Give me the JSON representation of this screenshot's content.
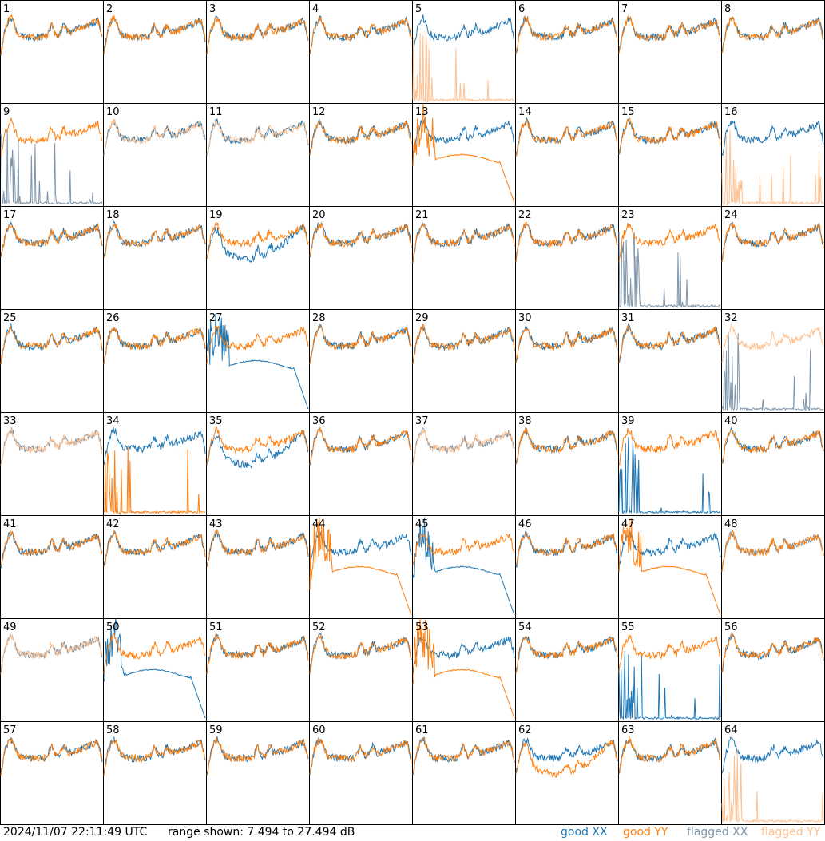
{
  "footer": {
    "timestamp": "2024/11/07 22:11:49 UTC",
    "range": "range shown: 7.494 to 27.494 dB",
    "legend": {
      "good_xx": "good XX",
      "good_yy": "good YY",
      "flagged_xx": "flagged XX",
      "flagged_yy": "flagged YY"
    }
  },
  "colors": {
    "good_xx": "#1f77b4",
    "good_yy": "#ff7f0e",
    "flagged_xx": "#7e95aa",
    "flagged_yy": "#ffc08f"
  },
  "chart_data": {
    "type": "line",
    "layout": "8x8 small multiples",
    "y_unit": "dB",
    "ylim": [
      7.494,
      27.494
    ],
    "grid": false,
    "legend_placement": "bottom-right",
    "series": [
      "XX",
      "YY"
    ],
    "panels": [
      {
        "id": "1",
        "xx": "normal",
        "yy": "normal"
      },
      {
        "id": "2",
        "xx": "normal",
        "yy": "normal"
      },
      {
        "id": "3",
        "xx": "normal",
        "yy": "normal"
      },
      {
        "id": "4",
        "xx": "normal",
        "yy": "normal"
      },
      {
        "id": "5",
        "xx": "normal",
        "yy": "flagged_spiky"
      },
      {
        "id": "6",
        "xx": "normal",
        "yy": "normal"
      },
      {
        "id": "7",
        "xx": "normal",
        "yy": "normal"
      },
      {
        "id": "8",
        "xx": "normal",
        "yy": "normal"
      },
      {
        "id": "9",
        "xx": "flagged_spiky",
        "yy": "normal"
      },
      {
        "id": "10",
        "xx": "normal",
        "yy": "flagged"
      },
      {
        "id": "11",
        "xx": "normal",
        "yy": "flagged"
      },
      {
        "id": "12",
        "xx": "normal",
        "yy": "normal"
      },
      {
        "id": "13",
        "xx": "normal",
        "yy": "droop"
      },
      {
        "id": "14",
        "xx": "normal",
        "yy": "normal"
      },
      {
        "id": "15",
        "xx": "normal",
        "yy": "normal"
      },
      {
        "id": "16",
        "xx": "normal",
        "yy": "flagged_spiky"
      },
      {
        "id": "17",
        "xx": "normal",
        "yy": "normal"
      },
      {
        "id": "18",
        "xx": "normal",
        "yy": "normal"
      },
      {
        "id": "19",
        "xx": "low",
        "yy": "normal"
      },
      {
        "id": "20",
        "xx": "normal",
        "yy": "normal"
      },
      {
        "id": "21",
        "xx": "normal",
        "yy": "normal"
      },
      {
        "id": "22",
        "xx": "normal",
        "yy": "normal"
      },
      {
        "id": "23",
        "xx": "flagged_spiky",
        "yy": "normal"
      },
      {
        "id": "24",
        "xx": "normal",
        "yy": "normal"
      },
      {
        "id": "25",
        "xx": "normal",
        "yy": "normal"
      },
      {
        "id": "26",
        "xx": "normal",
        "yy": "normal"
      },
      {
        "id": "27",
        "xx": "droop",
        "yy": "normal"
      },
      {
        "id": "28",
        "xx": "normal",
        "yy": "normal"
      },
      {
        "id": "29",
        "xx": "normal",
        "yy": "normal"
      },
      {
        "id": "30",
        "xx": "normal",
        "yy": "normal"
      },
      {
        "id": "31",
        "xx": "normal",
        "yy": "normal"
      },
      {
        "id": "32",
        "xx": "flagged_spiky",
        "yy": "flagged"
      },
      {
        "id": "33",
        "xx": "flagged",
        "yy": "flagged"
      },
      {
        "id": "34",
        "xx": "normal",
        "yy": "spiky"
      },
      {
        "id": "35",
        "xx": "low",
        "yy": "normal"
      },
      {
        "id": "36",
        "xx": "normal",
        "yy": "normal"
      },
      {
        "id": "37",
        "xx": "flagged",
        "yy": "flagged"
      },
      {
        "id": "38",
        "xx": "normal",
        "yy": "normal"
      },
      {
        "id": "39",
        "xx": "spiky",
        "yy": "normal"
      },
      {
        "id": "40",
        "xx": "normal",
        "yy": "normal"
      },
      {
        "id": "41",
        "xx": "normal",
        "yy": "normal"
      },
      {
        "id": "42",
        "xx": "normal",
        "yy": "normal"
      },
      {
        "id": "43",
        "xx": "normal",
        "yy": "normal"
      },
      {
        "id": "44",
        "xx": "normal",
        "yy": "droop"
      },
      {
        "id": "45",
        "xx": "droop",
        "yy": "normal"
      },
      {
        "id": "46",
        "xx": "normal",
        "yy": "normal"
      },
      {
        "id": "47",
        "xx": "normal",
        "yy": "droop"
      },
      {
        "id": "48",
        "xx": "flagged",
        "yy": "normal"
      },
      {
        "id": "49",
        "xx": "flagged",
        "yy": "flagged"
      },
      {
        "id": "50",
        "xx": "droop",
        "yy": "normal"
      },
      {
        "id": "51",
        "xx": "normal",
        "yy": "normal"
      },
      {
        "id": "52",
        "xx": "normal",
        "yy": "normal"
      },
      {
        "id": "53",
        "xx": "normal",
        "yy": "droop"
      },
      {
        "id": "54",
        "xx": "normal",
        "yy": "normal"
      },
      {
        "id": "55",
        "xx": "spiky",
        "yy": "normal"
      },
      {
        "id": "56",
        "xx": "normal",
        "yy": "normal"
      },
      {
        "id": "57",
        "xx": "normal",
        "yy": "normal"
      },
      {
        "id": "58",
        "xx": "normal",
        "yy": "normal"
      },
      {
        "id": "59",
        "xx": "normal",
        "yy": "normal"
      },
      {
        "id": "60",
        "xx": "normal",
        "yy": "normal"
      },
      {
        "id": "61",
        "xx": "normal",
        "yy": "normal"
      },
      {
        "id": "62",
        "xx": "normal",
        "yy": "low"
      },
      {
        "id": "63",
        "xx": "normal",
        "yy": "normal"
      },
      {
        "id": "64",
        "xx": "normal",
        "yy": "flagged_spiky"
      }
    ]
  }
}
